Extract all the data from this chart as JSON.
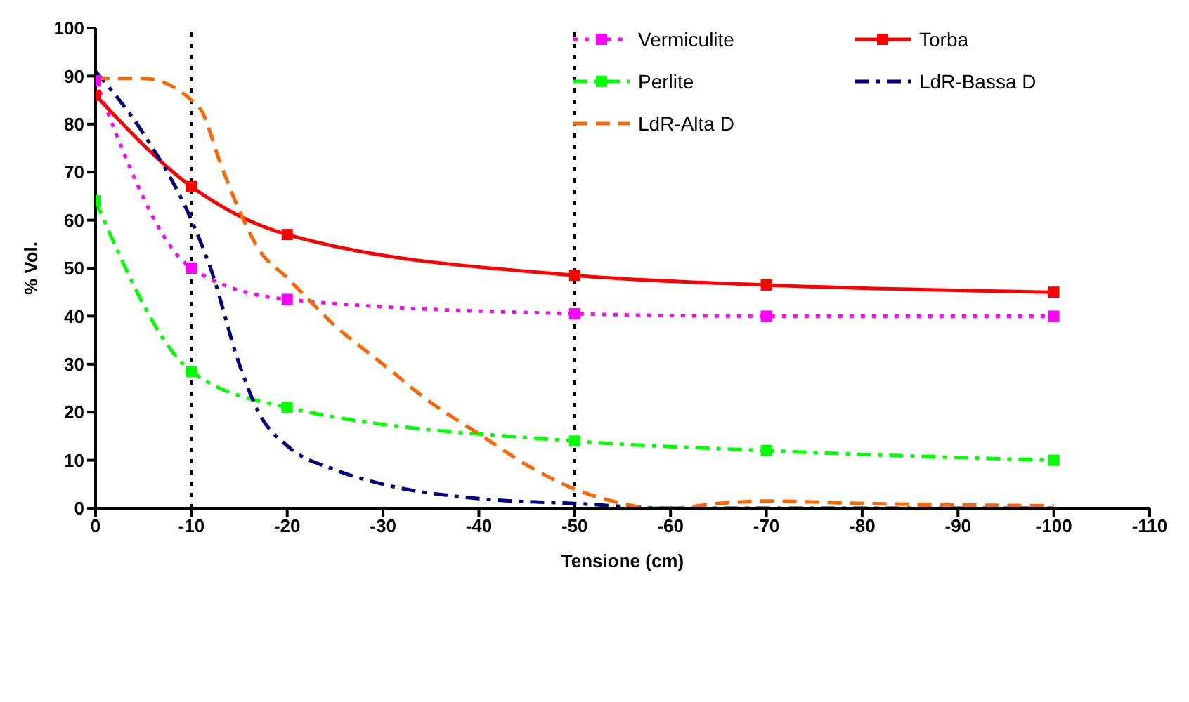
{
  "chart_data": {
    "type": "line",
    "xlabel": "Tensione (cm)",
    "ylabel": "% Vol.",
    "xlim": [
      0,
      -110
    ],
    "xticks": [
      0,
      -10,
      -20,
      -30,
      -40,
      -50,
      -60,
      -70,
      -80,
      -90,
      -100,
      -110
    ],
    "ylim": [
      0,
      100
    ],
    "yticks": [
      0,
      10,
      20,
      30,
      40,
      50,
      60,
      70,
      80,
      90,
      100
    ],
    "grid": false,
    "legend": "top right",
    "marker": "square",
    "ref_lines": [
      {
        "axis": "x",
        "value": -10,
        "color": "#000000",
        "line_style": "dotted"
      },
      {
        "axis": "x",
        "value": -50,
        "color": "#000000",
        "line_style": "dotted"
      }
    ],
    "series": [
      {
        "name": "Vermiculite",
        "color": "#ff00ff",
        "line_style": "dotted",
        "x": [
          0,
          -10,
          -20,
          -50,
          -70,
          -100
        ],
        "values": [
          89,
          50,
          43.5,
          40.5,
          40,
          40
        ]
      },
      {
        "name": "Torba",
        "color": "#ff0000",
        "line_style": "solid",
        "x": [
          0,
          -10,
          -20,
          -50,
          -70,
          -100
        ],
        "values": [
          86,
          67,
          57,
          48.5,
          46.5,
          45
        ]
      },
      {
        "name": "Perlite",
        "color": "#00ff00",
        "line_style": "dashdot",
        "x": [
          0,
          -10,
          -20,
          -50,
          -70,
          -100
        ],
        "values": [
          64,
          28.5,
          21,
          14,
          12,
          10
        ]
      },
      {
        "name": "LdR-Bassa D",
        "color": "#000080",
        "line_style": "dashdot",
        "marker": "none",
        "x": [
          0,
          -5,
          -10,
          -12,
          -15,
          -17,
          -20,
          -25,
          -30,
          -40,
          -50,
          -60,
          -70,
          -100
        ],
        "values": [
          91,
          78,
          60,
          50,
          30,
          20,
          13,
          8,
          5,
          2,
          1,
          0,
          0,
          0
        ]
      },
      {
        "name": "LdR-Alta D",
        "color": "#ff6600",
        "line_style": "dashed",
        "marker": "none",
        "x": [
          0,
          -5,
          -10,
          -11,
          -13,
          -15,
          -17,
          -20,
          -25,
          -30,
          -35,
          -40,
          -45,
          -50,
          -55,
          -58,
          -60,
          -65,
          -70,
          -80,
          -90,
          -100
        ],
        "values": [
          89.5,
          89.5,
          85,
          83,
          72,
          62,
          54,
          48,
          38,
          30,
          22,
          15.5,
          9,
          4,
          1,
          0,
          0,
          1,
          1.5,
          1,
          0.7,
          0.5
        ]
      }
    ]
  }
}
